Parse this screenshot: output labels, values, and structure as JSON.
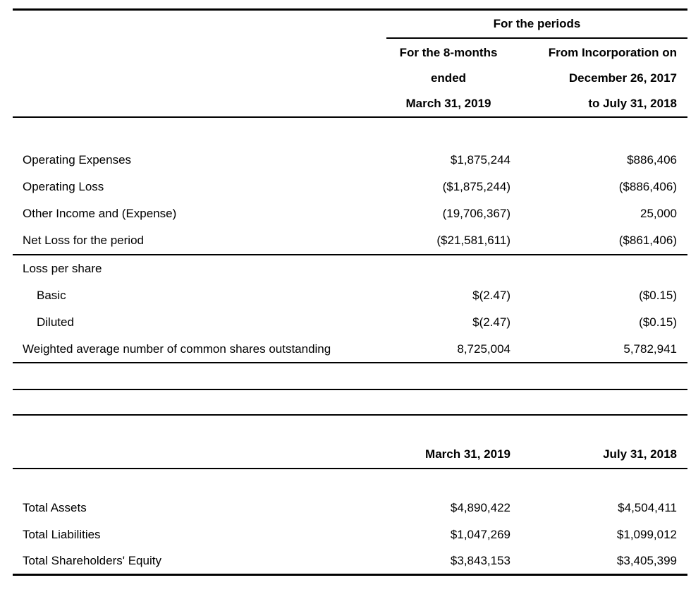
{
  "page": {
    "background_color": "#ffffff",
    "text_color": "#000000",
    "rule_color": "#000000"
  },
  "income_table": {
    "group_header": "For the periods",
    "col1_header_lines": [
      "For the 8-months",
      "ended",
      "March 31, 2019"
    ],
    "col2_header_lines": [
      "From Incorporation on",
      "December 26, 2017",
      "to July 31, 2018"
    ],
    "rows": [
      {
        "label": "Operating Expenses",
        "col1": "$1,875,244",
        "col2": "$886,406"
      },
      {
        "label": "Operating Loss",
        "col1": "($1,875,244)",
        "col2": "($886,406)"
      },
      {
        "label": "Other Income and (Expense)",
        "col1": "(19,706,367)",
        "col2": "25,000"
      },
      {
        "label": "Net Loss for the period",
        "col1": "($21,581,611)",
        "col2": "($861,406)"
      }
    ],
    "eps_rows": [
      {
        "label": "Loss per share",
        "col1": "",
        "col2": ""
      },
      {
        "label": "Basic",
        "col1": "$(2.47)",
        "col2": "($0.15)"
      },
      {
        "label": "Diluted",
        "col1": "$(2.47)",
        "col2": "($0.15)"
      },
      {
        "label": "Weighted average number of common shares outstanding",
        "col1": "8,725,004",
        "col2": "5,782,941"
      }
    ]
  },
  "balance_table": {
    "col1_header": "March 31, 2019",
    "col2_header": "July 31, 2018",
    "rows": [
      {
        "label": "Total Assets",
        "col1": "$4,890,422",
        "col2": "$4,504,411"
      },
      {
        "label": "Total Liabilities",
        "col1": "$1,047,269",
        "col2": "$1,099,012"
      },
      {
        "label": "Total Shareholders' Equity",
        "col1": "$3,843,153",
        "col2": "$3,405,399"
      }
    ]
  }
}
